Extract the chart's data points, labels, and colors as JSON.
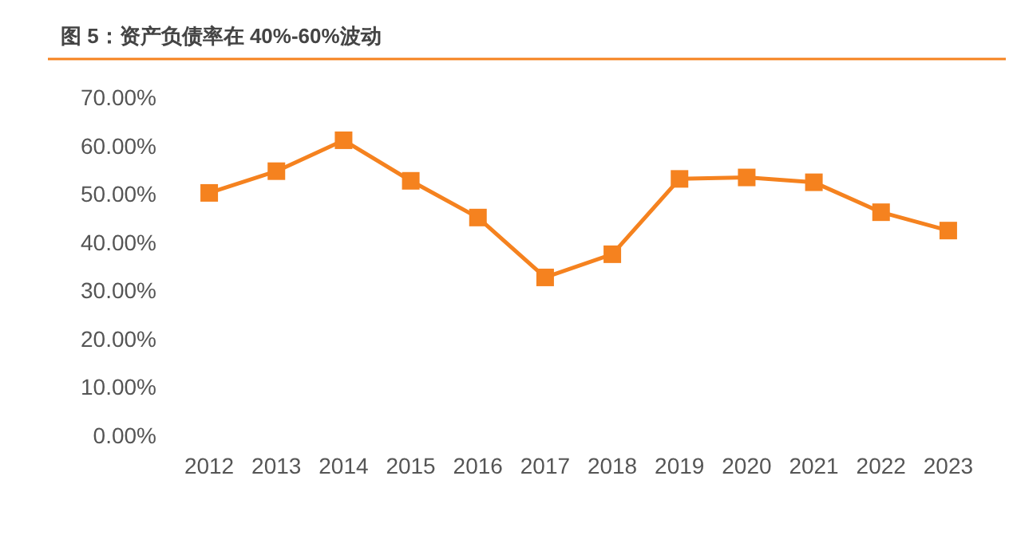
{
  "chart_data": {
    "type": "line",
    "title": "图 5：资产负债率在 40%-60%波动",
    "categories": [
      "2012",
      "2013",
      "2014",
      "2015",
      "2016",
      "2017",
      "2018",
      "2019",
      "2020",
      "2021",
      "2022",
      "2023"
    ],
    "series": [
      {
        "color": "#f5821f",
        "values": [
          50.2,
          54.7,
          61.1,
          52.7,
          45.1,
          32.7,
          37.5,
          53.1,
          53.4,
          52.4,
          46.2,
          42.4
        ]
      }
    ],
    "ylim": [
      0,
      70
    ],
    "yticks": [
      {
        "value": 0,
        "label": "0.00%"
      },
      {
        "value": 10,
        "label": "10.00%"
      },
      {
        "value": 20,
        "label": "20.00%"
      },
      {
        "value": 30,
        "label": "30.00%"
      },
      {
        "value": 40,
        "label": "40.00%"
      },
      {
        "value": 50,
        "label": "50.00%"
      },
      {
        "value": 60,
        "label": "60.00%"
      },
      {
        "value": 70,
        "label": "70.00%"
      }
    ],
    "grid": false,
    "marker": "square",
    "line_style": "solid"
  }
}
